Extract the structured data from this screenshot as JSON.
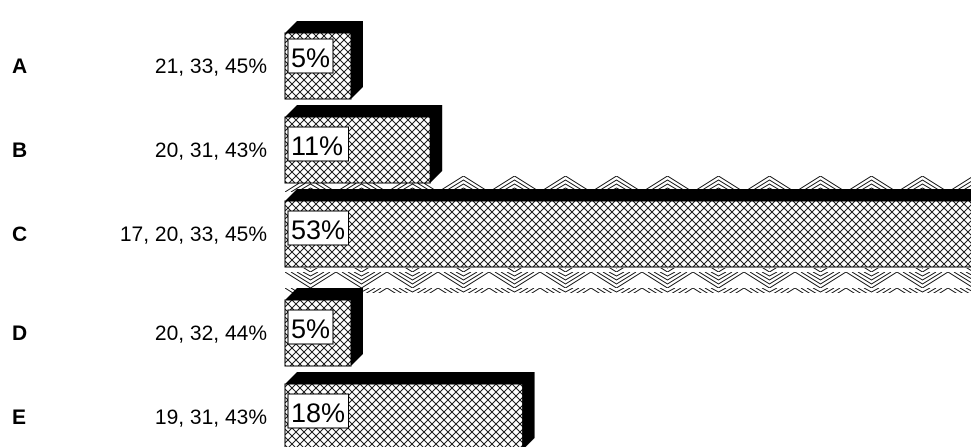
{
  "chart_data": {
    "type": "bar",
    "orientation": "horizontal",
    "categories": [
      "A",
      "B",
      "C",
      "D",
      "E"
    ],
    "answers": [
      "21, 33, 45%",
      "20, 31, 43%",
      "17, 20, 33, 45%",
      "20, 32, 44%",
      "19, 31, 43%"
    ],
    "values": [
      5,
      11,
      53,
      5,
      18
    ],
    "value_labels": [
      "5%",
      "11%",
      "53%",
      "5%",
      "18%"
    ],
    "highlighted": "C",
    "title": "",
    "xlabel": "",
    "ylabel": "",
    "grid": false,
    "legend": "none"
  }
}
